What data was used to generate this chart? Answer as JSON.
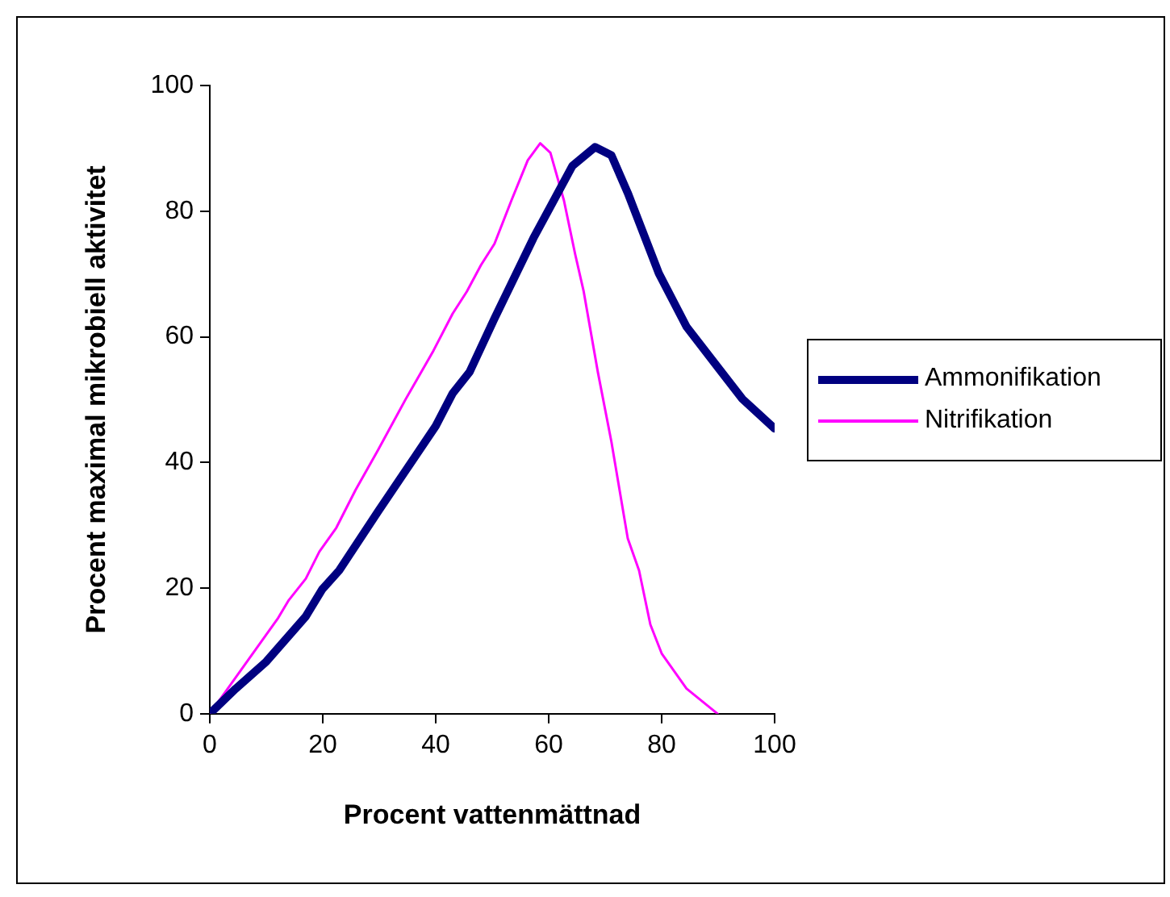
{
  "chart_data": {
    "type": "line",
    "xlabel": "Procent vattenmättnad",
    "ylabel": "Procent maximal mikrobiell aktivitet",
    "xlim": [
      0,
      100
    ],
    "xticks": [
      0,
      20,
      40,
      60,
      80,
      100
    ],
    "ylim": [
      0,
      100
    ],
    "yticks": [
      0,
      20,
      40,
      60,
      80,
      100
    ],
    "grid": false,
    "legend": "right",
    "marker": "none",
    "line_style": "solid",
    "series": [
      {
        "name": "Ammonifikation",
        "color": "#000080",
        "x": [
          0,
          4.6,
          10,
          17,
          19.9,
          22.9,
          29.8,
          40,
          43,
          46,
          50.4,
          57.3,
          64.2,
          68.2,
          71.1,
          74,
          79.5,
          84.4,
          89.9,
          94.3,
          100
        ],
        "values": [
          0,
          4,
          8.3,
          15.5,
          19.8,
          22.8,
          32.2,
          45.8,
          51,
          54.4,
          62.9,
          75.7,
          87.2,
          90.2,
          88.9,
          82.9,
          70.1,
          61.6,
          55.2,
          50.1,
          45.4
        ]
      },
      {
        "name": "Nitrifikation",
        "color": "#ff00ff",
        "x": [
          0,
          12,
          14,
          17,
          19.4,
          22.4,
          25.8,
          29.8,
          34.7,
          39.6,
          43,
          45.5,
          48,
          50.4,
          53.4,
          56.3,
          58.5,
          60.3,
          62.7,
          64.7,
          66.2,
          68.7,
          71.1,
          74,
          76,
          78,
          80,
          84.4,
          89.9
        ],
        "values": [
          0,
          15.1,
          18.1,
          21.5,
          25.8,
          29.6,
          35.6,
          42,
          50.1,
          57.8,
          63.7,
          67.2,
          71.4,
          74.8,
          81.7,
          88.1,
          90.8,
          89.3,
          81.7,
          73.1,
          67.2,
          54.4,
          43.3,
          27.9,
          22.8,
          14.2,
          9.6,
          4,
          0
        ]
      }
    ]
  }
}
